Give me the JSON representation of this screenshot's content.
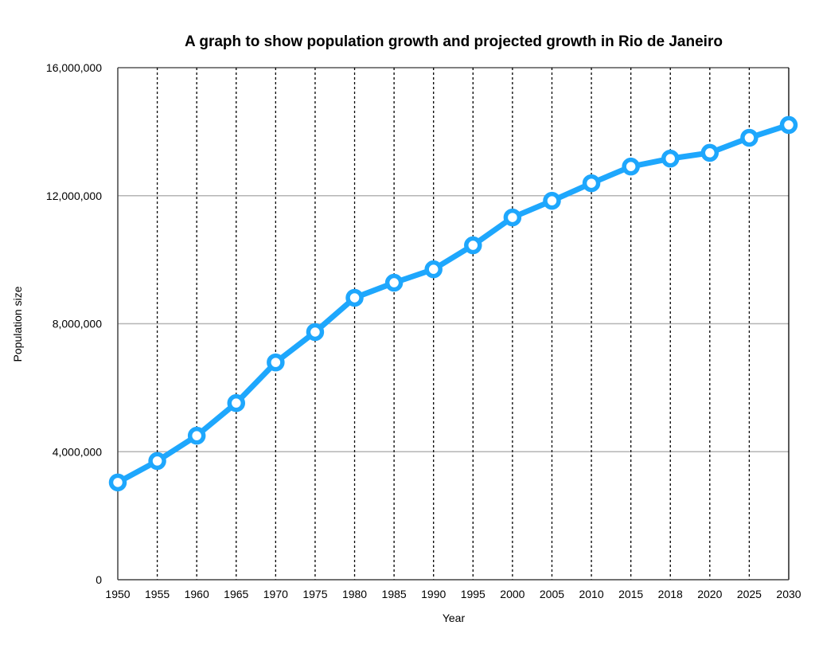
{
  "chart_data": {
    "type": "line",
    "title": "A graph to show population growth and projected growth in Rio de Janeiro",
    "xlabel": "Year",
    "ylabel": "Population size",
    "categories": [
      "1950",
      "1955",
      "1960",
      "1965",
      "1970",
      "1975",
      "1980",
      "1985",
      "1990",
      "1995",
      "2000",
      "2005",
      "2010",
      "2015",
      "2018",
      "2020",
      "2025",
      "2030"
    ],
    "values": [
      3040000,
      3710000,
      4500000,
      5520000,
      6790000,
      7740000,
      8810000,
      9280000,
      9700000,
      10450000,
      11320000,
      11840000,
      12390000,
      12910000,
      13160000,
      13340000,
      13810000,
      14210000
    ],
    "ylim": [
      0,
      16000000
    ],
    "yticks": [
      "0",
      "4,000,000",
      "8,000,000",
      "12,000,000",
      "16,000,000"
    ],
    "ytick_values": [
      0,
      4000000,
      8000000,
      12000000,
      16000000
    ],
    "grid": {
      "horizontal": "solid gray",
      "vertical": "dotted black"
    },
    "legend": "none",
    "colors": {
      "line": "#1ea7fd",
      "marker_fill": "#ffffff"
    }
  }
}
